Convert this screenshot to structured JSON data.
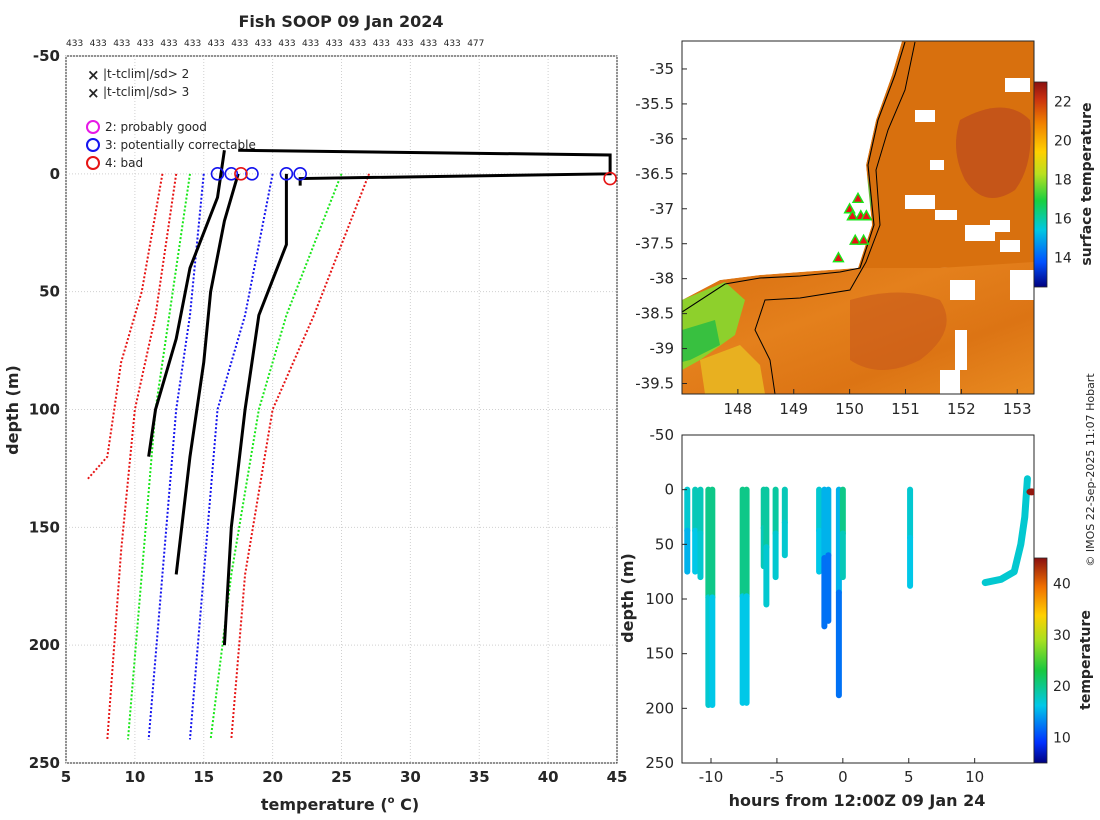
{
  "title": "Fish SOOP 09 Jan 2024",
  "drop_counts": [
    "433",
    "433",
    "433",
    "433",
    "433",
    "433",
    "433",
    "433",
    "433",
    "433",
    "433",
    "433",
    "433",
    "433",
    "433",
    "433",
    "433",
    "477"
  ],
  "credit": "© IMOS 22-Sep-2025 11:07 Hobart",
  "legend": {
    "green_cross": "|t-tclim|/sd> 2",
    "red_cross": "|t-tclim|/sd> 3",
    "flag2": "2: probably good",
    "flag3": "3: potentially correctable",
    "flag4": "4: bad"
  },
  "colors": {
    "green_clim": "#19e619",
    "red_clim": "#e61414",
    "blue_mean": "#1414ee",
    "profile": "#000000",
    "flag2": "#e619e6",
    "flag3": "#1414ee",
    "flag4": "#e61414"
  },
  "chart_data": [
    {
      "type": "line",
      "id": "profiles",
      "xlabel": "temperature (",
      "xlabel_sup": "o",
      "xlabel_end": " C)",
      "ylabel": "depth (m)",
      "xlim": [
        5,
        45
      ],
      "ylim": [
        -50,
        250
      ],
      "y_reversed": true,
      "xticks": [
        5,
        10,
        15,
        20,
        25,
        30,
        35,
        40,
        45
      ],
      "yticks": [
        -50,
        0,
        50,
        100,
        150,
        200,
        250
      ],
      "grid": true,
      "series": [
        {
          "name": "red_left",
          "color": "red",
          "depth": [
            0,
            50,
            80,
            120,
            130
          ],
          "temp": [
            12,
            10.5,
            9,
            8,
            6.5
          ]
        },
        {
          "name": "red_left2",
          "color": "red",
          "depth": [
            0,
            60,
            100,
            160,
            240
          ],
          "temp": [
            13,
            11.5,
            10,
            9,
            8
          ]
        },
        {
          "name": "green_left",
          "color": "green",
          "depth": [
            0,
            60,
            100,
            170,
            240
          ],
          "temp": [
            14,
            12.5,
            11.5,
            10.5,
            9.5
          ]
        },
        {
          "name": "blue_left",
          "color": "blue",
          "depth": [
            0,
            60,
            100,
            170,
            240
          ],
          "temp": [
            15,
            14,
            13,
            12,
            11
          ]
        },
        {
          "name": "blue_right",
          "color": "blue",
          "depth": [
            0,
            60,
            100,
            170,
            240
          ],
          "temp": [
            20,
            18,
            16,
            15,
            14
          ]
        },
        {
          "name": "green_right",
          "color": "green",
          "depth": [
            0,
            60,
            100,
            170,
            240
          ],
          "temp": [
            25,
            21,
            19,
            17,
            15.5
          ]
        },
        {
          "name": "red_right",
          "color": "red",
          "depth": [
            0,
            60,
            100,
            170,
            240
          ],
          "temp": [
            27,
            23,
            20,
            18,
            17
          ]
        },
        {
          "name": "profile_a",
          "color": "black",
          "depth": [
            -10,
            10,
            40,
            70,
            90,
            100,
            120
          ],
          "temp": [
            16.5,
            16,
            14,
            13,
            12,
            11.5,
            11
          ]
        },
        {
          "name": "profile_b",
          "color": "black",
          "depth": [
            0,
            20,
            50,
            80,
            120,
            170
          ],
          "temp": [
            17.5,
            16.5,
            15.5,
            15,
            14,
            13
          ]
        },
        {
          "name": "profile_c",
          "color": "black",
          "depth": [
            0,
            30,
            60,
            100,
            150,
            200
          ],
          "temp": [
            21,
            21,
            19,
            18,
            17,
            16.5
          ]
        },
        {
          "name": "spike",
          "color": "black",
          "depth": [
            -10,
            -8,
            0,
            2,
            5
          ],
          "temp": [
            17.5,
            44.5,
            44.5,
            22,
            22
          ]
        }
      ],
      "flagged": [
        {
          "flag": 3,
          "temp": 16,
          "depth": 0
        },
        {
          "flag": 3,
          "temp": 17,
          "depth": 0
        },
        {
          "flag": 3,
          "temp": 18.5,
          "depth": 0
        },
        {
          "flag": 3,
          "temp": 21,
          "depth": 0
        },
        {
          "flag": 3,
          "temp": 22,
          "depth": 0
        },
        {
          "flag": 4,
          "temp": 17.7,
          "depth": 0
        },
        {
          "flag": 4,
          "temp": 44.5,
          "depth": 2
        }
      ]
    },
    {
      "type": "heatmap",
      "id": "map",
      "xlim": [
        147,
        153.3
      ],
      "ylim": [
        -39.65,
        -34.6
      ],
      "xticks": [
        148,
        149,
        150,
        151,
        152,
        153
      ],
      "yticks": [
        -35,
        -35.5,
        -36,
        -36.5,
        -37,
        -37.5,
        -38,
        -38.5,
        -39,
        -39.5
      ],
      "colorbar_label": "surface temperature",
      "colorbar_range": [
        12.5,
        23
      ],
      "colorbar_ticks": [
        14,
        16,
        18,
        20,
        22
      ],
      "drop_markers": [
        {
          "lon": 149.8,
          "lat": -37.7
        },
        {
          "lon": 150.0,
          "lat": -37.0
        },
        {
          "lon": 150.05,
          "lat": -37.1
        },
        {
          "lon": 150.1,
          "lat": -37.45
        },
        {
          "lon": 150.15,
          "lat": -36.85
        },
        {
          "lon": 150.2,
          "lat": -37.1
        },
        {
          "lon": 150.25,
          "lat": -37.45
        },
        {
          "lon": 150.3,
          "lat": -37.1
        }
      ]
    },
    {
      "type": "scatter",
      "id": "time_depth",
      "xlabel": "hours from 12:00Z 09 Jan 24",
      "ylabel": "depth (m)",
      "xlim": [
        -12.2,
        14.5
      ],
      "ylim": [
        -50,
        250
      ],
      "y_reversed": true,
      "xticks": [
        -10,
        -5,
        0,
        5,
        10
      ],
      "yticks": [
        -50,
        0,
        50,
        100,
        150,
        200,
        250
      ],
      "colorbar_label": "temperature",
      "colorbar_range": [
        5,
        45
      ],
      "colorbar_ticks": [
        10,
        20,
        30,
        40
      ],
      "casts": [
        {
          "hours": -11.8,
          "max_depth": 75,
          "temp_top": 17,
          "temp_bottom": 15
        },
        {
          "hours": -11.2,
          "max_depth": 75,
          "temp_top": 18,
          "temp_bottom": 16
        },
        {
          "hours": -10.8,
          "max_depth": 80,
          "temp_top": 18,
          "temp_bottom": 17
        },
        {
          "hours": -10.2,
          "max_depth": 197,
          "temp_top": 20,
          "temp_bottom": 17
        },
        {
          "hours": -9.9,
          "max_depth": 197,
          "temp_top": 20,
          "temp_bottom": 16
        },
        {
          "hours": -7.6,
          "max_depth": 195,
          "temp_top": 20,
          "temp_bottom": 16
        },
        {
          "hours": -7.3,
          "max_depth": 195,
          "temp_top": 20,
          "temp_bottom": 16
        },
        {
          "hours": -6.0,
          "max_depth": 70,
          "temp_top": 19,
          "temp_bottom": 18
        },
        {
          "hours": -5.8,
          "max_depth": 105,
          "temp_top": 19,
          "temp_bottom": 17
        },
        {
          "hours": -5.1,
          "max_depth": 80,
          "temp_top": 19,
          "temp_bottom": 17
        },
        {
          "hours": -4.4,
          "max_depth": 60,
          "temp_top": 18,
          "temp_bottom": 17
        },
        {
          "hours": -1.8,
          "max_depth": 75,
          "temp_top": 17,
          "temp_bottom": 16
        },
        {
          "hours": -1.4,
          "max_depth": 125,
          "temp_top": 15,
          "temp_bottom": 12
        },
        {
          "hours": -1.1,
          "max_depth": 120,
          "temp_top": 15,
          "temp_bottom": 12
        },
        {
          "hours": -0.3,
          "max_depth": 188,
          "temp_top": 15,
          "temp_bottom": 12
        },
        {
          "hours": 0.0,
          "max_depth": 80,
          "temp_top": 20,
          "temp_bottom": 18
        },
        {
          "hours": 5.1,
          "max_depth": 88,
          "temp_top": 17,
          "temp_bottom": 16
        }
      ],
      "sweep": {
        "hours": [
          10.8,
          12.0,
          13.0,
          13.5,
          13.8,
          14.0
        ],
        "depth": [
          85,
          82,
          75,
          50,
          25,
          -10
        ],
        "temp": 17
      },
      "bad_point": {
        "hours": 14.0,
        "depth": 2,
        "temp": 44.5
      }
    }
  ]
}
